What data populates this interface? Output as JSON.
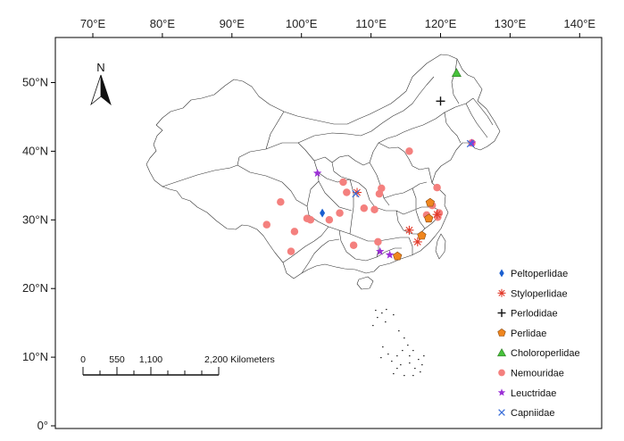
{
  "x_axis": {
    "ticks": [
      {
        "value": 70,
        "label": "70°E"
      },
      {
        "value": 80,
        "label": "80°E"
      },
      {
        "value": 90,
        "label": "90°E"
      },
      {
        "value": 100,
        "label": "100°E"
      },
      {
        "value": 110,
        "label": "110°E"
      },
      {
        "value": 120,
        "label": "120°E"
      },
      {
        "value": 130,
        "label": "130°E"
      },
      {
        "value": 140,
        "label": "140°E"
      }
    ]
  },
  "y_axis": {
    "ticks": [
      {
        "value": 50,
        "label": "50°N"
      },
      {
        "value": 40,
        "label": "40°N"
      },
      {
        "value": 30,
        "label": "30°N"
      },
      {
        "value": 20,
        "label": "20°N"
      },
      {
        "value": 10,
        "label": "10°N"
      },
      {
        "value": 0,
        "label": "0°"
      }
    ]
  },
  "north_arrow": {
    "label": "N"
  },
  "scale_bar": {
    "labels": [
      "0",
      "550",
      "1,100",
      "2,200 Kilometers"
    ],
    "km_values": [
      0,
      550,
      1100,
      2200
    ]
  },
  "legend": [
    {
      "name": "Peltoperlidae",
      "symbol": "diamond",
      "color": "#1a5fd0"
    },
    {
      "name": "Styloperlidae",
      "symbol": "asterisk",
      "color": "#e23a2a"
    },
    {
      "name": "Perlodidae",
      "symbol": "plus",
      "color": "#111111"
    },
    {
      "name": "Perlidae",
      "symbol": "pentagon",
      "color": "#f0861e"
    },
    {
      "name": "Choloroperlidae",
      "symbol": "triangle",
      "color": "#47c23b"
    },
    {
      "name": "Nemouridae",
      "symbol": "circle",
      "color": "#f4807e"
    },
    {
      "name": "Leuctridae",
      "symbol": "star",
      "color": "#9b30d6"
    },
    {
      "name": "Capniidae",
      "symbol": "x",
      "color": "#3a6ed8"
    }
  ],
  "records": [
    {
      "family": "Peltoperlidae",
      "lon": 103.0,
      "lat": 31.0
    },
    {
      "family": "Styloperlidae",
      "lon": 108.0,
      "lat": 34.0
    },
    {
      "family": "Styloperlidae",
      "lon": 115.5,
      "lat": 28.5
    },
    {
      "family": "Styloperlidae",
      "lon": 116.7,
      "lat": 26.8
    },
    {
      "family": "Styloperlidae",
      "lon": 119.5,
      "lat": 30.8
    },
    {
      "family": "Perlodidae",
      "lon": 120.0,
      "lat": 47.3
    },
    {
      "family": "Perlidae",
      "lon": 118.5,
      "lat": 32.5
    },
    {
      "family": "Perlidae",
      "lon": 118.3,
      "lat": 30.2
    },
    {
      "family": "Perlidae",
      "lon": 117.3,
      "lat": 27.7
    },
    {
      "family": "Perlidae",
      "lon": 113.8,
      "lat": 24.7
    },
    {
      "family": "Choloroperlidae",
      "lon": 122.3,
      "lat": 51.4
    },
    {
      "family": "Nemouridae",
      "lon": 95.0,
      "lat": 29.3
    },
    {
      "family": "Nemouridae",
      "lon": 97.0,
      "lat": 32.6
    },
    {
      "family": "Nemouridae",
      "lon": 99.0,
      "lat": 28.3
    },
    {
      "family": "Nemouridae",
      "lon": 98.5,
      "lat": 25.4
    },
    {
      "family": "Nemouridae",
      "lon": 100.8,
      "lat": 30.2
    },
    {
      "family": "Nemouridae",
      "lon": 101.3,
      "lat": 30.0
    },
    {
      "family": "Nemouridae",
      "lon": 104.0,
      "lat": 30.0
    },
    {
      "family": "Nemouridae",
      "lon": 105.5,
      "lat": 31.0
    },
    {
      "family": "Nemouridae",
      "lon": 106.0,
      "lat": 35.5
    },
    {
      "family": "Nemouridae",
      "lon": 106.5,
      "lat": 34.0
    },
    {
      "family": "Nemouridae",
      "lon": 107.5,
      "lat": 26.3
    },
    {
      "family": "Nemouridae",
      "lon": 109.0,
      "lat": 31.7
    },
    {
      "family": "Nemouridae",
      "lon": 110.5,
      "lat": 31.5
    },
    {
      "family": "Nemouridae",
      "lon": 111.0,
      "lat": 26.8
    },
    {
      "family": "Nemouridae",
      "lon": 111.5,
      "lat": 34.6
    },
    {
      "family": "Nemouridae",
      "lon": 111.2,
      "lat": 33.8
    },
    {
      "family": "Nemouridae",
      "lon": 115.5,
      "lat": 40.0
    },
    {
      "family": "Nemouridae",
      "lon": 118.0,
      "lat": 30.7
    },
    {
      "family": "Nemouridae",
      "lon": 118.8,
      "lat": 32.1
    },
    {
      "family": "Nemouridae",
      "lon": 119.5,
      "lat": 34.7
    },
    {
      "family": "Nemouridae",
      "lon": 119.8,
      "lat": 31.0
    },
    {
      "family": "Nemouridae",
      "lon": 119.6,
      "lat": 30.4
    },
    {
      "family": "Nemouridae",
      "lon": 124.5,
      "lat": 41.2
    },
    {
      "family": "Leuctridae",
      "lon": 102.3,
      "lat": 36.8
    },
    {
      "family": "Leuctridae",
      "lon": 111.3,
      "lat": 25.4
    },
    {
      "family": "Leuctridae",
      "lon": 112.7,
      "lat": 24.9
    },
    {
      "family": "Leuctridae",
      "lon": 124.5,
      "lat": 41.2
    },
    {
      "family": "Capniidae",
      "lon": 107.8,
      "lat": 33.8
    },
    {
      "family": "Capniidae",
      "lon": 124.3,
      "lat": 41.1
    }
  ]
}
